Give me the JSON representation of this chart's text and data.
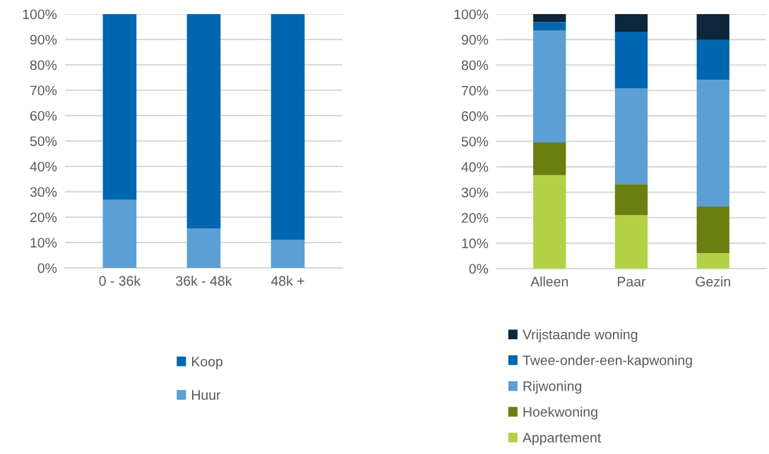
{
  "chart_data": [
    {
      "type": "bar",
      "stacked": true,
      "categories": [
        "0 - 36k",
        "36k - 48k",
        "48k +"
      ],
      "series": [
        {
          "name": "Huur",
          "color": "#5b9fd4",
          "values": [
            26.8,
            15.5,
            11.1
          ]
        },
        {
          "name": "Koop",
          "color": "#0066b0",
          "values": [
            73.2,
            84.5,
            88.9
          ]
        }
      ],
      "ylim": [
        0,
        100
      ],
      "yticks": [
        {
          "value": 0,
          "label": "0%"
        },
        {
          "value": 10,
          "label": "10%"
        },
        {
          "value": 20,
          "label": "20%"
        },
        {
          "value": 30,
          "label": "30%"
        },
        {
          "value": 40,
          "label": "40%"
        },
        {
          "value": 50,
          "label": "50%"
        },
        {
          "value": 60,
          "label": "60%"
        },
        {
          "value": 70,
          "label": "70%"
        },
        {
          "value": 80,
          "label": "80%"
        },
        {
          "value": 90,
          "label": "90%"
        },
        {
          "value": 100,
          "label": "100%"
        }
      ],
      "grid": "y",
      "legend": "bottom"
    },
    {
      "type": "bar",
      "stacked": true,
      "categories": [
        "Alleen",
        "Paar",
        "Gezin"
      ],
      "series": [
        {
          "name": "Appartement",
          "color": "#b2d146",
          "values": [
            36.7,
            21.0,
            6.1
          ]
        },
        {
          "name": "Hoekwoning",
          "color": "#6a7f10",
          "values": [
            12.9,
            12.2,
            18.3
          ]
        },
        {
          "name": "Rijwoning",
          "color": "#5b9fd4",
          "values": [
            43.9,
            37.6,
            49.8
          ]
        },
        {
          "name": "Twee-onder-een-kapwoning",
          "color": "#0066b0",
          "values": [
            3.4,
            22.3,
            15.6
          ]
        },
        {
          "name": "Vrijstaande woning",
          "color": "#0d263b",
          "values": [
            3.1,
            6.9,
            10.2
          ]
        }
      ],
      "ylim": [
        0,
        100
      ],
      "yticks": [
        {
          "value": 0,
          "label": "0%"
        },
        {
          "value": 10,
          "label": "10%"
        },
        {
          "value": 20,
          "label": "20%"
        },
        {
          "value": 30,
          "label": "30%"
        },
        {
          "value": 40,
          "label": "40%"
        },
        {
          "value": 50,
          "label": "50%"
        },
        {
          "value": 60,
          "label": "60%"
        },
        {
          "value": 70,
          "label": "70%"
        },
        {
          "value": 80,
          "label": "80%"
        },
        {
          "value": 90,
          "label": "90%"
        },
        {
          "value": 100,
          "label": "100%"
        }
      ],
      "grid": "y",
      "legend": "bottom"
    }
  ]
}
